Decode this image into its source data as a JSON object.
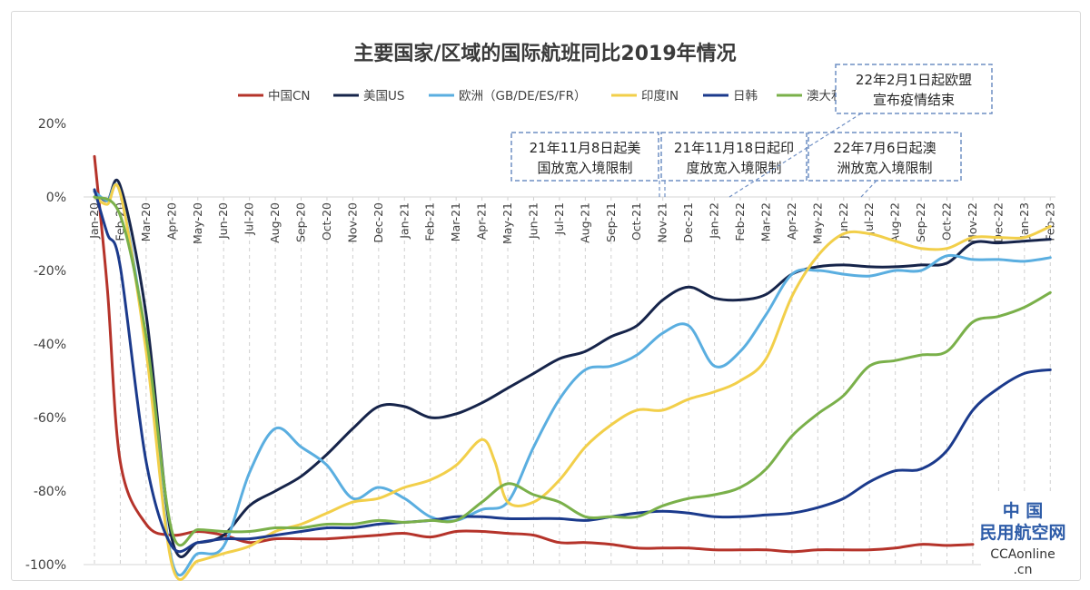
{
  "chart_data": {
    "type": "line",
    "title": "主要国家/区域的国际航班同比2019年情况",
    "ylim": [
      -100,
      20
    ],
    "yticks": [
      "20%",
      "0%",
      "-20%",
      "-40%",
      "-60%",
      "-80%",
      "-100%"
    ],
    "ytick_values": [
      20,
      0,
      -20,
      -40,
      -60,
      -80,
      -100
    ],
    "grid": "vertical dashed",
    "legend": "top",
    "x_labels": [
      "Jan-20",
      "Feb-20",
      "Mar-20",
      "Apr-20",
      "May-20",
      "Jun-20",
      "Jul-20",
      "Aug-20",
      "Sep-20",
      "Oct-20",
      "Nov-20",
      "Dec-20",
      "Jan-21",
      "Feb-21",
      "Mar-21",
      "Apr-21",
      "May-21",
      "Jun-21",
      "Jul-21",
      "Aug-21",
      "Sep-21",
      "Oct-21",
      "Nov-21",
      "Dec-21",
      "Jan-22",
      "Feb-22",
      "Mar-22",
      "Apr-22",
      "May-22",
      "Jun-22",
      "Jul-22",
      "Aug-22",
      "Sep-22",
      "Oct-22",
      "Nov-22",
      "Dec-22",
      "Jan-23",
      "Feb-23"
    ],
    "series": [
      {
        "name": "中国CN",
        "color": "#b5332a",
        "points": [
          [
            0,
            11
          ],
          [
            0.5,
            -25
          ],
          [
            1,
            -72
          ],
          [
            2,
            -89
          ],
          [
            3,
            -92
          ],
          [
            4,
            -91
          ],
          [
            5,
            -92
          ],
          [
            6,
            -94
          ],
          [
            7,
            -93
          ],
          [
            8,
            -93
          ],
          [
            9,
            -93
          ],
          [
            10,
            -92.5
          ],
          [
            11,
            -92
          ],
          [
            12,
            -91.5
          ],
          [
            13,
            -92.5
          ],
          [
            14,
            -91
          ],
          [
            15,
            -91
          ],
          [
            16,
            -91.5
          ],
          [
            17,
            -92
          ],
          [
            18,
            -94
          ],
          [
            19,
            -94
          ],
          [
            20,
            -94.5
          ],
          [
            21,
            -95.5
          ],
          [
            22,
            -95.5
          ],
          [
            23,
            -95.5
          ],
          [
            24,
            -96
          ],
          [
            25,
            -96
          ],
          [
            26,
            -96
          ],
          [
            27,
            -96.5
          ],
          [
            28,
            -96
          ],
          [
            29,
            -96
          ],
          [
            30,
            -96
          ],
          [
            31,
            -95.5
          ],
          [
            32,
            -94.5
          ],
          [
            33,
            -94.8
          ],
          [
            34,
            -94.5
          ]
        ]
      },
      {
        "name": "美国US",
        "color": "#16244a",
        "points": [
          [
            0,
            1.5
          ],
          [
            0.5,
            -1
          ],
          [
            1,
            3
          ],
          [
            2,
            -32
          ],
          [
            3,
            -93
          ],
          [
            4,
            -94
          ],
          [
            5,
            -92
          ],
          [
            6,
            -84
          ],
          [
            7,
            -80
          ],
          [
            8,
            -76
          ],
          [
            9,
            -70
          ],
          [
            10,
            -63
          ],
          [
            11,
            -57
          ],
          [
            12,
            -57
          ],
          [
            13,
            -60
          ],
          [
            14,
            -59
          ],
          [
            15,
            -56
          ],
          [
            16,
            -52
          ],
          [
            17,
            -48
          ],
          [
            18,
            -44
          ],
          [
            19,
            -42
          ],
          [
            20,
            -38
          ],
          [
            21,
            -35
          ],
          [
            22,
            -28
          ],
          [
            23,
            -24.5
          ],
          [
            24,
            -27.5
          ],
          [
            25,
            -28
          ],
          [
            26,
            -26.5
          ],
          [
            27,
            -21
          ],
          [
            28,
            -19
          ],
          [
            29,
            -18.5
          ],
          [
            30,
            -19
          ],
          [
            31,
            -19
          ],
          [
            32,
            -18.5
          ],
          [
            33,
            -18
          ],
          [
            34,
            -12.5
          ],
          [
            35,
            -12.5
          ],
          [
            36,
            -12
          ],
          [
            37,
            -11.5
          ]
        ]
      },
      {
        "name": "欧洲（GB/DE/ES/FR）",
        "color": "#5aaee0",
        "points": [
          [
            0,
            1.5
          ],
          [
            0.5,
            -1
          ],
          [
            1,
            1
          ],
          [
            2,
            -40
          ],
          [
            3,
            -99
          ],
          [
            4,
            -97
          ],
          [
            5,
            -95
          ],
          [
            6,
            -75
          ],
          [
            7,
            -63
          ],
          [
            8,
            -68
          ],
          [
            9,
            -73
          ],
          [
            10,
            -82
          ],
          [
            11,
            -79
          ],
          [
            12,
            -82
          ],
          [
            13,
            -87
          ],
          [
            14,
            -88
          ],
          [
            15,
            -85
          ],
          [
            16,
            -83
          ],
          [
            17,
            -68
          ],
          [
            18,
            -55
          ],
          [
            19,
            -47
          ],
          [
            20,
            -46
          ],
          [
            21,
            -43
          ],
          [
            22,
            -37
          ],
          [
            23,
            -35
          ],
          [
            24,
            -46
          ],
          [
            25,
            -42
          ],
          [
            26,
            -32
          ],
          [
            27,
            -21
          ],
          [
            28,
            -20
          ],
          [
            29,
            -21
          ],
          [
            30,
            -21.5
          ],
          [
            31,
            -20
          ],
          [
            32,
            -20
          ],
          [
            33,
            -16
          ],
          [
            34,
            -17
          ],
          [
            35,
            -17
          ],
          [
            36,
            -17.5
          ],
          [
            37,
            -16.5
          ]
        ]
      },
      {
        "name": "印度IN",
        "color": "#f2cf4a",
        "points": [
          [
            0,
            0
          ],
          [
            0.5,
            -2
          ],
          [
            1,
            1
          ],
          [
            2,
            -42
          ],
          [
            3,
            -100
          ],
          [
            4,
            -99
          ],
          [
            5,
            -97
          ],
          [
            6,
            -95
          ],
          [
            7,
            -91
          ],
          [
            8,
            -89
          ],
          [
            9,
            -86
          ],
          [
            10,
            -83
          ],
          [
            11,
            -82
          ],
          [
            12,
            -79
          ],
          [
            13,
            -77
          ],
          [
            14,
            -73
          ],
          [
            15,
            -66
          ],
          [
            15.5,
            -72
          ],
          [
            16,
            -83
          ],
          [
            17,
            -83
          ],
          [
            18,
            -77
          ],
          [
            19,
            -68
          ],
          [
            20,
            -62
          ],
          [
            21,
            -58
          ],
          [
            22,
            -58
          ],
          [
            23,
            -55
          ],
          [
            24,
            -53
          ],
          [
            25,
            -50
          ],
          [
            26,
            -44
          ],
          [
            27,
            -27
          ],
          [
            28,
            -16
          ],
          [
            29,
            -10
          ],
          [
            30,
            -10
          ],
          [
            31,
            -12
          ],
          [
            32,
            -14
          ],
          [
            33,
            -14
          ],
          [
            34,
            -11
          ],
          [
            35,
            -11
          ],
          [
            36,
            -11
          ],
          [
            37,
            -8
          ]
        ]
      },
      {
        "name": "日韩",
        "color": "#1b3a8c",
        "points": [
          [
            0,
            2
          ],
          [
            0.5,
            -10
          ],
          [
            1,
            -19
          ],
          [
            2,
            -72
          ],
          [
            3,
            -95
          ],
          [
            4,
            -94
          ],
          [
            5,
            -93
          ],
          [
            6,
            -93
          ],
          [
            7,
            -92
          ],
          [
            8,
            -91
          ],
          [
            9,
            -90
          ],
          [
            10,
            -90
          ],
          [
            11,
            -89
          ],
          [
            12,
            -88.5
          ],
          [
            13,
            -88
          ],
          [
            14,
            -87
          ],
          [
            15,
            -87
          ],
          [
            16,
            -87.5
          ],
          [
            17,
            -87.5
          ],
          [
            18,
            -87.5
          ],
          [
            19,
            -88
          ],
          [
            20,
            -87
          ],
          [
            21,
            -86
          ],
          [
            22,
            -85.5
          ],
          [
            23,
            -86
          ],
          [
            24,
            -87
          ],
          [
            25,
            -87
          ],
          [
            26,
            -86.5
          ],
          [
            27,
            -86
          ],
          [
            28,
            -84.5
          ],
          [
            29,
            -82
          ],
          [
            30,
            -77.5
          ],
          [
            31,
            -74.5
          ],
          [
            32,
            -74
          ],
          [
            33,
            -69
          ],
          [
            34,
            -58
          ],
          [
            35,
            -52
          ],
          [
            36,
            -48
          ],
          [
            37,
            -47
          ]
        ]
      },
      {
        "name": "澳大利亚",
        "color": "#7ab04a",
        "points": [
          [
            0,
            0
          ],
          [
            1,
            -5
          ],
          [
            2,
            -38
          ],
          [
            3,
            -91
          ],
          [
            4,
            -90.5
          ],
          [
            5,
            -91
          ],
          [
            6,
            -91
          ],
          [
            7,
            -90
          ],
          [
            8,
            -90
          ],
          [
            9,
            -89
          ],
          [
            10,
            -89
          ],
          [
            11,
            -88
          ],
          [
            12,
            -88.5
          ],
          [
            13,
            -88
          ],
          [
            14,
            -88
          ],
          [
            15,
            -83
          ],
          [
            16,
            -78
          ],
          [
            17,
            -81
          ],
          [
            18,
            -83
          ],
          [
            19,
            -87
          ],
          [
            20,
            -87
          ],
          [
            21,
            -87
          ],
          [
            22,
            -84
          ],
          [
            23,
            -82
          ],
          [
            24,
            -81
          ],
          [
            25,
            -79
          ],
          [
            26,
            -74
          ],
          [
            27,
            -65
          ],
          [
            28,
            -59
          ],
          [
            29,
            -54
          ],
          [
            30,
            -46
          ],
          [
            31,
            -44.5
          ],
          [
            32,
            -43
          ],
          [
            33,
            -42
          ],
          [
            34,
            -34
          ],
          [
            35,
            -32.5
          ],
          [
            36,
            -30
          ],
          [
            37,
            -26
          ]
        ]
      }
    ],
    "annotations": [
      {
        "lines": [
          "22年2月1日起欧盟",
          "宣布疫情结束"
        ]
      },
      {
        "lines": [
          "21年11月8日起美",
          "国放宽入境限制"
        ]
      },
      {
        "lines": [
          "21年11月18日起印",
          "度放宽入境限制"
        ]
      },
      {
        "lines": [
          "22年7月6日起澳",
          "洲放宽入境限制"
        ]
      }
    ]
  },
  "watermark": {
    "line1": "中 国",
    "line2": "民用航空网",
    "line3": "CCAonline",
    "line4": ".cn"
  }
}
